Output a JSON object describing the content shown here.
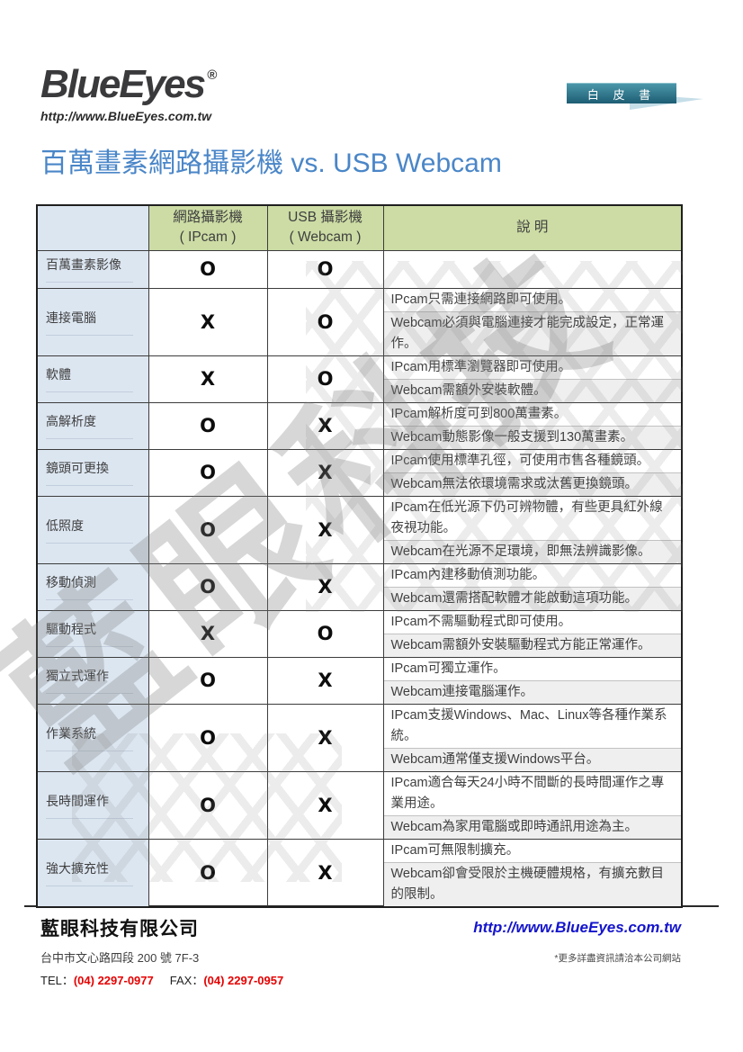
{
  "logo": {
    "brand": "BlueEyes",
    "registered": "®",
    "url": "http://www.BlueEyes.com.tw"
  },
  "badge": {
    "label": "白 皮 書"
  },
  "title": "百萬畫素網路攝影機 vs. USB Webcam",
  "watermark": {
    "text": "藍眼科技"
  },
  "table": {
    "columns": [
      {
        "line1": ""
      },
      {
        "line1": "網路攝影機",
        "line2": "( IPcam )"
      },
      {
        "line1": "USB 攝影機",
        "line2": "( Webcam )"
      },
      {
        "line1": "說 明"
      }
    ],
    "rows": [
      {
        "label": "百萬畫素影像",
        "ipcam": "O",
        "webcam": "O",
        "descriptions": []
      },
      {
        "label": "連接電腦",
        "ipcam": "X",
        "webcam": "O",
        "descriptions": [
          "IPcam只需連接網路即可使用。",
          "Webcam必須與電腦連接才能完成設定，正常運作。"
        ]
      },
      {
        "label": "軟體",
        "ipcam": "X",
        "webcam": "O",
        "descriptions": [
          "IPcam用標準瀏覽器即可使用。",
          "Webcam需額外安裝軟體。"
        ]
      },
      {
        "label": "高解析度",
        "ipcam": "O",
        "webcam": "X",
        "descriptions": [
          "IPcam解析度可到800萬畫素。",
          "Webcam動態影像一般支援到130萬畫素。"
        ]
      },
      {
        "label": "鏡頭可更換",
        "ipcam": "O",
        "webcam": "X",
        "descriptions": [
          "IPcam使用標準孔徑，可使用市售各種鏡頭。",
          "Webcam無法依環境需求或汰舊更換鏡頭。"
        ]
      },
      {
        "label": "低照度",
        "ipcam": "O",
        "webcam": "X",
        "descriptions": [
          "IPcam在低光源下仍可辨物體，有些更具紅外線夜視功能。",
          "Webcam在光源不足環境，即無法辨識影像。"
        ]
      },
      {
        "label": "移動偵測",
        "ipcam": "O",
        "webcam": "X",
        "descriptions": [
          "IPcam內建移動偵測功能。",
          "Webcam還需搭配軟體才能啟動這項功能。"
        ]
      },
      {
        "label": "驅動程式",
        "ipcam": "X",
        "webcam": "O",
        "descriptions": [
          "IPcam不需驅動程式即可使用。",
          "Webcam需額外安裝驅動程式方能正常運作。"
        ]
      },
      {
        "label": "獨立式運作",
        "ipcam": "O",
        "webcam": "X",
        "descriptions": [
          "IPcam可獨立運作。",
          "Webcam連接電腦運作。"
        ]
      },
      {
        "label": "作業系統",
        "ipcam": "O",
        "webcam": "X",
        "descriptions": [
          "IPcam支援Windows、Mac、Linux等各種作業系統。",
          "Webcam通常僅支援Windows平台。"
        ]
      },
      {
        "label": "長時間運作",
        "ipcam": "O",
        "webcam": "X",
        "descriptions": [
          "IPcam適合每天24小時不間斷的長時間運作之專業用途。",
          "Webcam為家用電腦或即時通訊用途為主。"
        ]
      },
      {
        "label": "強大擴充性",
        "ipcam": "O",
        "webcam": "X",
        "descriptions": [
          "IPcam可無限制擴充。",
          "Webcam卻會受限於主機硬體規格，有擴充數目的限制。"
        ]
      }
    ]
  },
  "footer": {
    "company": "藍眼科技有限公司",
    "address": "台中市文心路四段 200 號 7F-3",
    "tel_label": "TEL：",
    "tel": "(04) 2297-0977",
    "fax_label": "FAX：",
    "fax": "(04) 2297-0957",
    "url": "http://www.BlueEyes.com.tw",
    "note": "*更多詳盡資訊請洽本公司網站"
  },
  "colors": {
    "accent_title": "#4a86c8",
    "header_green": "#ccdca4",
    "label_blue": "#dce6f1",
    "shaded_gray": "#efefef",
    "badge_teal_top": "#4b97aa",
    "badge_teal_bottom": "#1d5d73",
    "badge_arrow": "#c5dee8",
    "phone_red": "#e60000",
    "url_blue": "#1414cc"
  }
}
